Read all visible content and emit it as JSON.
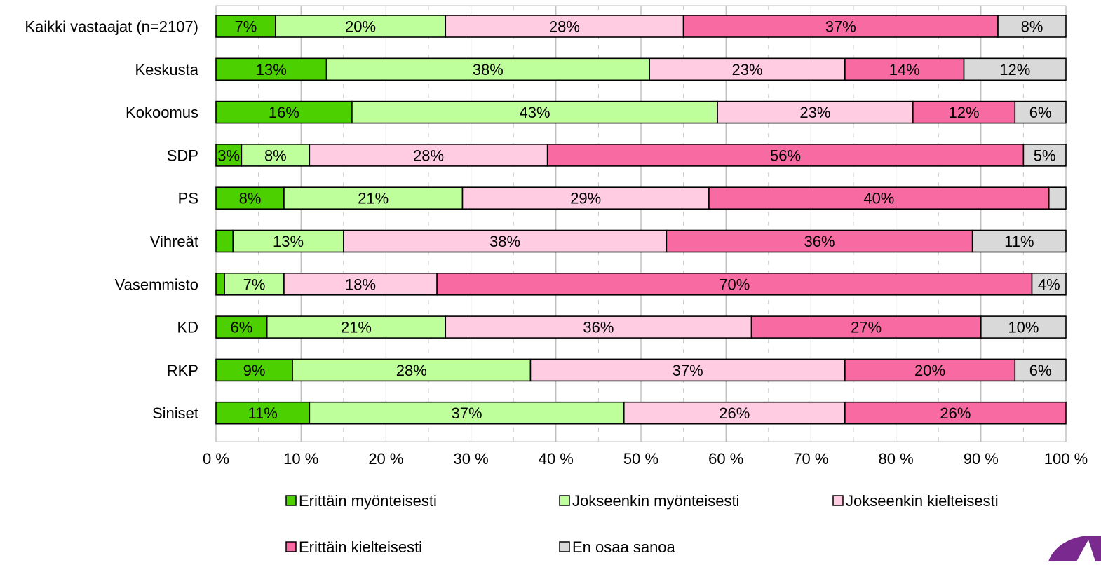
{
  "chart_data": {
    "type": "bar",
    "orientation": "horizontal",
    "stacked": "percent",
    "categories": [
      "Kaikki vastaajat (n=2107)",
      "Keskusta",
      "Kokoomus",
      "SDP",
      "PS",
      "Vihreät",
      "Vasemmisto",
      "KD",
      "RKP",
      "Siniset"
    ],
    "series": [
      {
        "name": "Erittäin myönteisesti",
        "color": "#4cd000",
        "values": [
          7,
          13,
          16,
          3,
          8,
          2,
          1,
          6,
          9,
          11
        ],
        "labels": [
          "7%",
          "13%",
          "16%",
          "3%",
          "8%",
          "",
          "",
          "6%",
          "9%",
          "11%"
        ]
      },
      {
        "name": "Jokseenkin myönteisesti",
        "color": "#bfff9b",
        "values": [
          20,
          38,
          43,
          8,
          21,
          13,
          7,
          21,
          28,
          37
        ],
        "labels": [
          "20%",
          "38%",
          "43%",
          "8%",
          "21%",
          "13%",
          "7%",
          "21%",
          "28%",
          "37%"
        ]
      },
      {
        "name": "Jokseenkin kielteisesti",
        "color": "#ffcce2",
        "values": [
          28,
          23,
          23,
          28,
          29,
          38,
          18,
          36,
          37,
          26
        ],
        "labels": [
          "28%",
          "23%",
          "23%",
          "28%",
          "29%",
          "38%",
          "18%",
          "36%",
          "37%",
          "26%"
        ]
      },
      {
        "name": "Erittäin kielteisesti",
        "color": "#f76ba2",
        "values": [
          37,
          14,
          12,
          56,
          40,
          36,
          70,
          27,
          20,
          26
        ],
        "labels": [
          "37%",
          "14%",
          "12%",
          "56%",
          "40%",
          "36%",
          "70%",
          "27%",
          "20%",
          "26%"
        ]
      },
      {
        "name": "En osaa sanoa",
        "color": "#d9d9d9",
        "values": [
          8,
          12,
          6,
          5,
          2,
          11,
          4,
          10,
          6,
          0
        ],
        "labels": [
          "8%",
          "12%",
          "6%",
          "5%",
          "",
          "11%",
          "4%",
          "10%",
          "6%",
          ""
        ]
      }
    ],
    "xlim": [
      0,
      100
    ],
    "x_ticks": [
      "0 %",
      "10 %",
      "20 %",
      "30 %",
      "40 %",
      "50 %",
      "60 %",
      "70 %",
      "80 %",
      "90 %",
      "100 %"
    ],
    "grid": true,
    "legend_position": "bottom"
  }
}
